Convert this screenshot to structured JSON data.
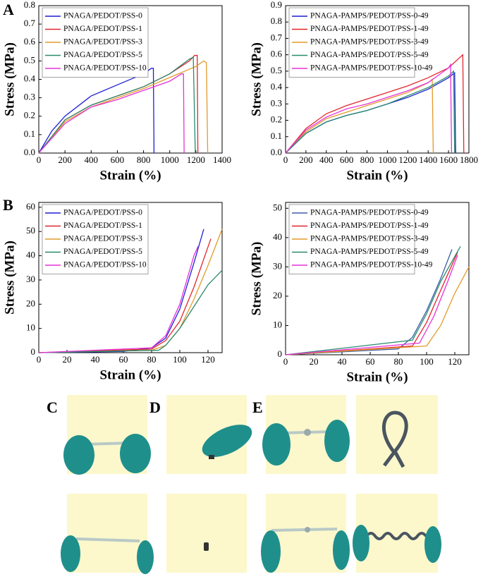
{
  "panel_labels": [
    "A",
    "B",
    "C",
    "D",
    "E"
  ],
  "chart_data": [
    {
      "type": "line",
      "xlabel": "Strain (%)",
      "ylabel": "Stress (MPa)",
      "xlim": [
        0,
        1400
      ],
      "xticks": [
        0,
        200,
        400,
        600,
        800,
        1000,
        1200,
        1400
      ],
      "ylim": [
        0,
        0.8
      ],
      "yticks": [
        {
          "value": 0,
          "label": "0.0"
        },
        0.1,
        0.2,
        0.3,
        0.4,
        0.5,
        0.6,
        0.7,
        0.8
      ],
      "legend": "upper left",
      "series": [
        {
          "name": "PNAGA/PEDOT/PSS-0",
          "color": "#1f1fd6",
          "x": [
            0,
            100,
            200,
            400,
            600,
            800,
            860,
            875,
            880
          ],
          "values": [
            0,
            0.12,
            0.2,
            0.31,
            0.37,
            0.43,
            0.46,
            0.46,
            0
          ]
        },
        {
          "name": "PNAGA/PEDOT/PSS-1",
          "color": "#e0262e",
          "x": [
            0,
            200,
            400,
            600,
            800,
            1000,
            1150,
            1190,
            1210,
            1215
          ],
          "values": [
            0,
            0.18,
            0.26,
            0.31,
            0.36,
            0.43,
            0.5,
            0.53,
            0.53,
            0
          ]
        },
        {
          "name": "PNAGA/PEDOT/PSS-3",
          "color": "#e39a2b",
          "x": [
            0,
            200,
            400,
            600,
            800,
            1000,
            1200,
            1260,
            1280,
            1290
          ],
          "values": [
            0,
            0.17,
            0.25,
            0.3,
            0.35,
            0.41,
            0.47,
            0.5,
            0.49,
            0
          ]
        },
        {
          "name": "PNAGA/PEDOT/PSS-5",
          "color": "#2a8a6e",
          "x": [
            0,
            200,
            400,
            600,
            800,
            1000,
            1150,
            1180,
            1195
          ],
          "values": [
            0,
            0.18,
            0.26,
            0.31,
            0.36,
            0.43,
            0.51,
            0.52,
            0
          ]
        },
        {
          "name": "PNAGA/PEDOT/PSS-10",
          "color": "#e632d9",
          "x": [
            0,
            200,
            400,
            600,
            800,
            1000,
            1090,
            1105,
            1110
          ],
          "values": [
            0,
            0.16,
            0.25,
            0.29,
            0.34,
            0.39,
            0.43,
            0.43,
            0
          ]
        }
      ]
    },
    {
      "type": "line",
      "xlabel": "Strain (%)",
      "ylabel": "Stress (MPa)",
      "xlim": [
        0,
        1800
      ],
      "xticks": [
        0,
        200,
        400,
        600,
        800,
        1000,
        1200,
        1400,
        1600,
        1800
      ],
      "ylim": [
        0,
        0.9
      ],
      "yticks": [
        {
          "value": 0,
          "label": "0.0"
        },
        0.1,
        0.2,
        0.3,
        0.4,
        0.5,
        0.6,
        0.7,
        0.8,
        0.9
      ],
      "legend": "upper left",
      "series": [
        {
          "name": "PNAGA-PAMPS/PEDOT/PSS-0-49",
          "color": "#1f1fd6",
          "x": [
            0,
            200,
            400,
            600,
            800,
            1000,
            1200,
            1400,
            1600,
            1660,
            1670
          ],
          "values": [
            0,
            0.12,
            0.19,
            0.23,
            0.26,
            0.3,
            0.34,
            0.39,
            0.46,
            0.49,
            0
          ]
        },
        {
          "name": "PNAGA-PAMPS/PEDOT/PSS-1-49",
          "color": "#e0262e",
          "x": [
            0,
            200,
            400,
            600,
            800,
            1000,
            1200,
            1400,
            1600,
            1740,
            1750
          ],
          "values": [
            0,
            0.15,
            0.24,
            0.29,
            0.33,
            0.37,
            0.41,
            0.46,
            0.52,
            0.6,
            0
          ]
        },
        {
          "name": "PNAGA-PAMPS/PEDOT/PSS-3-49",
          "color": "#e39a2b",
          "x": [
            0,
            200,
            400,
            600,
            800,
            1000,
            1200,
            1400,
            1440,
            1450
          ],
          "values": [
            0,
            0.13,
            0.21,
            0.25,
            0.29,
            0.33,
            0.37,
            0.43,
            0.45,
            0
          ]
        },
        {
          "name": "PNAGA-PAMPS/PEDOT/PSS-5-49",
          "color": "#2a8a6e",
          "x": [
            0,
            200,
            400,
            600,
            800,
            1000,
            1200,
            1400,
            1600,
            1650,
            1660
          ],
          "values": [
            0,
            0.12,
            0.19,
            0.23,
            0.26,
            0.3,
            0.35,
            0.4,
            0.47,
            0.5,
            0
          ]
        },
        {
          "name": "PNAGA-PAMPS/PEDOT/PSS-10-49",
          "color": "#e632d9",
          "x": [
            0,
            200,
            400,
            600,
            800,
            1000,
            1200,
            1400,
            1600,
            1620,
            1630
          ],
          "values": [
            0,
            0.14,
            0.22,
            0.27,
            0.3,
            0.34,
            0.38,
            0.43,
            0.52,
            0.54,
            0
          ]
        }
      ]
    },
    {
      "type": "line",
      "xlabel": "Strain (%)",
      "ylabel": "Stress (MPa)",
      "xlim": [
        0,
        130
      ],
      "xticks": [
        0,
        20,
        40,
        60,
        80,
        100,
        120
      ],
      "ylim": [
        0,
        62
      ],
      "yticks": [
        0,
        10,
        20,
        30,
        40,
        50,
        60
      ],
      "legend": "upper left",
      "series": [
        {
          "name": "PNAGA/PEDOT/PSS-0",
          "color": "#1f1fd6",
          "x": [
            0,
            60,
            80,
            90,
            100,
            110,
            117
          ],
          "values": [
            0,
            0.5,
            2,
            6,
            18,
            37,
            51
          ]
        },
        {
          "name": "PNAGA/PEDOT/PSS-1",
          "color": "#e0262e",
          "x": [
            0,
            80,
            90,
            100,
            110,
            122
          ],
          "values": [
            0,
            1.5,
            5,
            13,
            27,
            47
          ]
        },
        {
          "name": "PNAGA/PEDOT/PSS-3",
          "color": "#e39a2b",
          "x": [
            0,
            80,
            90,
            100,
            110,
            120,
            130
          ],
          "values": [
            0,
            1,
            3,
            10,
            22,
            36,
            51
          ]
        },
        {
          "name": "PNAGA/PEDOT/PSS-5",
          "color": "#2a8a6e",
          "x": [
            0,
            85,
            90,
            100,
            110,
            120,
            130
          ],
          "values": [
            0,
            1,
            3,
            10,
            19,
            28,
            34
          ]
        },
        {
          "name": "PNAGA/PEDOT/PSS-10",
          "color": "#e632d9",
          "x": [
            0,
            80,
            90,
            100,
            110,
            113
          ],
          "values": [
            0,
            2,
            7,
            20,
            40,
            44
          ]
        }
      ]
    },
    {
      "type": "line",
      "xlabel": "Strain (%)",
      "ylabel": "Stress (MPa)",
      "xlim": [
        0,
        130
      ],
      "xticks": [
        0,
        20,
        40,
        60,
        80,
        100,
        120
      ],
      "ylim": [
        0,
        52
      ],
      "yticks": [
        0,
        10,
        20,
        30,
        40,
        50
      ],
      "legend": "upper left",
      "series": [
        {
          "name": "PNAGA-PAMPS/PEDOT/PSS-0-49",
          "color": "#3a5fa8",
          "x": [
            0,
            80,
            90,
            100,
            110,
            118
          ],
          "values": [
            0,
            2,
            6,
            15,
            26,
            36
          ]
        },
        {
          "name": "PNAGA-PAMPS/PEDOT/PSS-1-49",
          "color": "#e0262e",
          "x": [
            0,
            90,
            100,
            110,
            122
          ],
          "values": [
            0,
            3,
            11,
            22,
            35
          ]
        },
        {
          "name": "PNAGA-PAMPS/PEDOT/PSS-3-49",
          "color": "#e39a2b",
          "x": [
            0,
            100,
            110,
            120,
            130
          ],
          "values": [
            0,
            3,
            10,
            21,
            30
          ]
        },
        {
          "name": "PNAGA-PAMPS/PEDOT/PSS-5-49",
          "color": "#2a8a6e",
          "x": [
            0,
            90,
            100,
            110,
            124
          ],
          "values": [
            0,
            5,
            14,
            25,
            37
          ]
        },
        {
          "name": "PNAGA-PAMPS/PEDOT/PSS-10-49",
          "color": "#e632d9",
          "x": [
            0,
            95,
            105,
            115,
            122
          ],
          "values": [
            0,
            4,
            13,
            25,
            34
          ]
        }
      ]
    }
  ]
}
